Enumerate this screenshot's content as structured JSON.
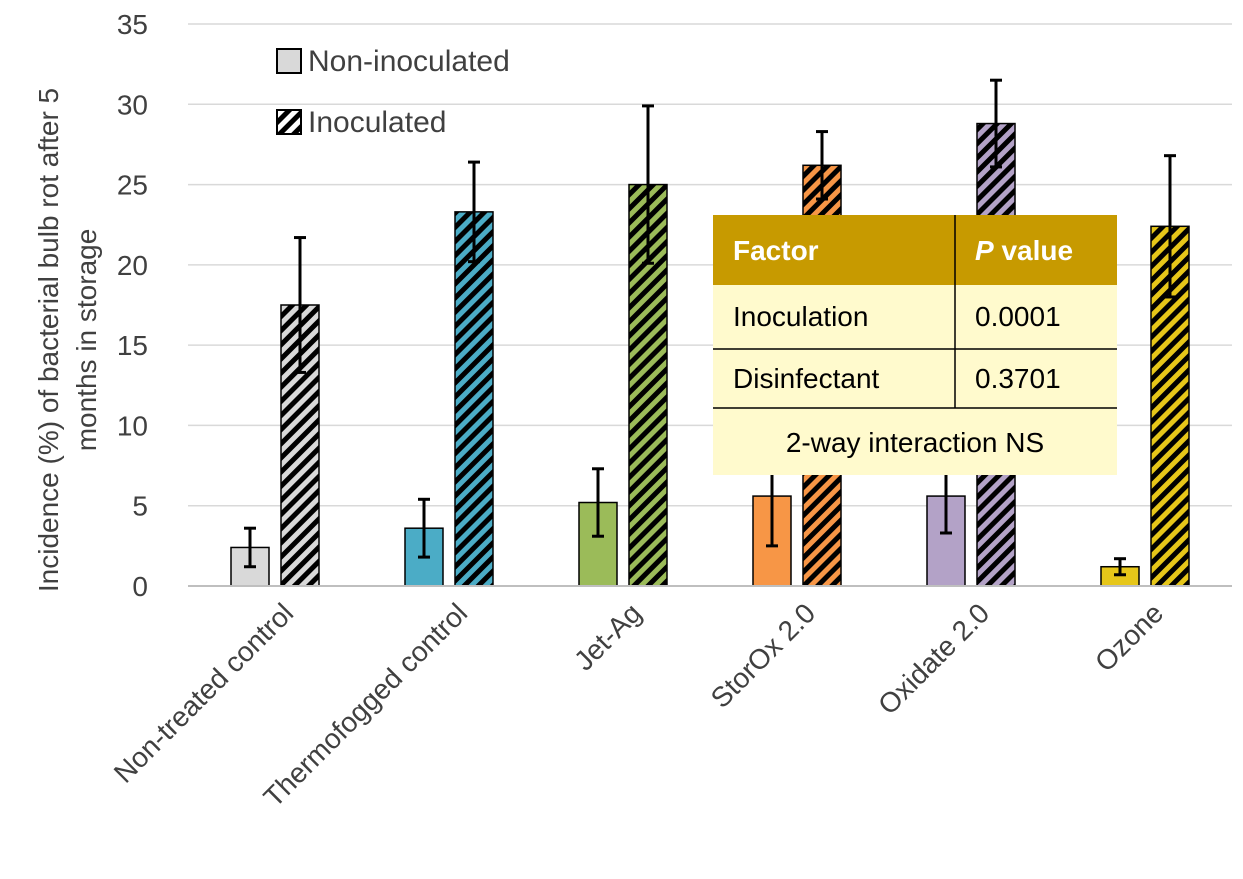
{
  "chart_data": {
    "type": "bar",
    "ylabel_line1": "Incidence (%) of bacterial bulb rot after 5",
    "ylabel_line2": "months in storage",
    "ylim": [
      0,
      35
    ],
    "yticks": [
      0,
      5,
      10,
      15,
      20,
      25,
      30,
      35
    ],
    "grid": true,
    "legend_position": "top-left",
    "categories": [
      "Non-treated control",
      "Thermofogged control",
      "Jet-Ag",
      "StorOx 2.0",
      "Oxidate 2.0",
      "Ozone"
    ],
    "category_colors": [
      "#d9d9d9",
      "#4bacc6",
      "#9bbb59",
      "#f79646",
      "#b3a2c7",
      "#e6c619"
    ],
    "series": [
      {
        "name": "Non-inoculated",
        "pattern": "solid",
        "values": [
          2.4,
          3.6,
          5.2,
          5.6,
          5.6,
          1.2
        ],
        "errors": [
          1.2,
          1.8,
          2.1,
          3.1,
          2.3,
          0.5
        ]
      },
      {
        "name": "Inoculated",
        "pattern": "diagonal-hatch",
        "values": [
          17.5,
          23.3,
          25.0,
          26.2,
          28.8,
          22.4
        ],
        "errors": [
          4.2,
          3.1,
          4.9,
          2.1,
          2.7,
          4.4
        ]
      }
    ]
  },
  "stats_table": {
    "header_factor": "Factor",
    "header_p_italic": "P",
    "header_p_rest": " value",
    "rows": [
      {
        "factor": "Inoculation",
        "p": "0.0001"
      },
      {
        "factor": "Disinfectant",
        "p": "0.3701"
      }
    ],
    "footer": "2-way interaction NS",
    "header_color": "#c79a00",
    "body_color": "#fffacd"
  }
}
